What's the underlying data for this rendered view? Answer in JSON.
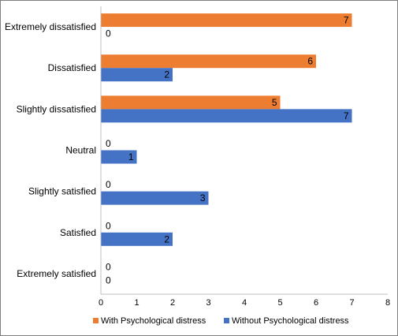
{
  "chart_data": {
    "type": "bar",
    "orientation": "horizontal",
    "categories": [
      "Extremely dissatisfied",
      "Dissatisfied",
      "Slightly dissatisfied",
      "Neutral",
      "Slightly satisfied",
      "Satisfied",
      "Extremely satisfied"
    ],
    "series": [
      {
        "name": "With Psychological distress",
        "color": "#ED7D31",
        "values": [
          7,
          6,
          5,
          0,
          0,
          0,
          0
        ]
      },
      {
        "name": "Without Psychological distress",
        "color": "#4472C4",
        "values": [
          0,
          2,
          7,
          1,
          3,
          2,
          0
        ]
      }
    ],
    "xlim": [
      0,
      8
    ],
    "xticks": [
      "0",
      "1",
      "2",
      "3",
      "4",
      "5",
      "6",
      "7",
      "8"
    ],
    "grid": false,
    "legend": "bottom",
    "data_labels": true
  }
}
